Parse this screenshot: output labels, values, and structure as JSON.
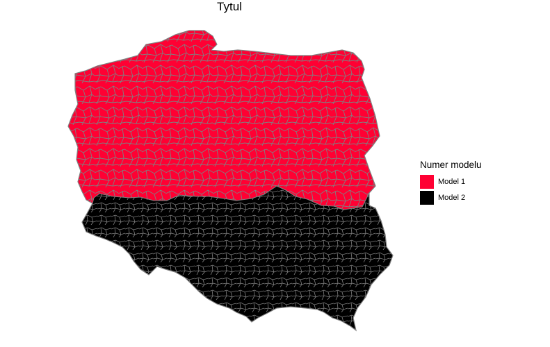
{
  "map": {
    "title": "Tytul",
    "boundary_color": "#808080",
    "regions": [
      {
        "name": "Model 1",
        "color": "#FF0033"
      },
      {
        "name": "Model 2",
        "color": "#000000"
      }
    ]
  },
  "legend": {
    "title": "Numer modelu",
    "items": [
      {
        "label": "Model 1",
        "color": "#FF0033"
      },
      {
        "label": "Model 2",
        "color": "#000000"
      }
    ]
  }
}
